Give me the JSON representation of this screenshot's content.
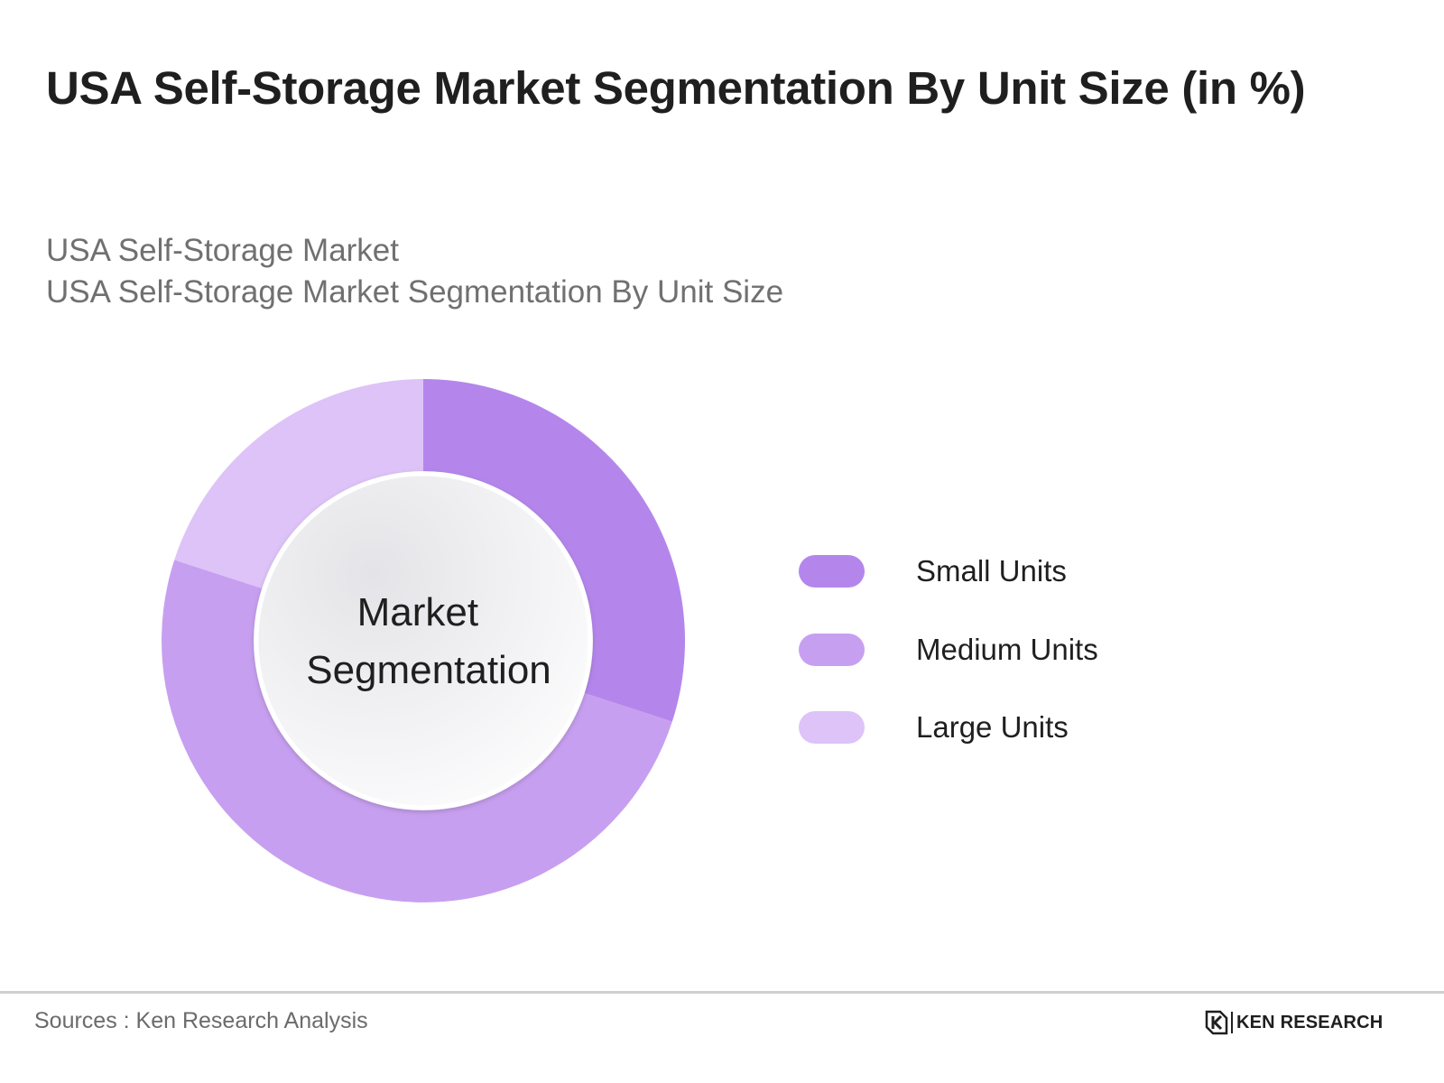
{
  "title": "USA Self-Storage Market Segmentation By Unit Size (in %)",
  "subtitle_line1": "USA Self-Storage Market",
  "subtitle_line2": "USA Self-Storage Market Segmentation By Unit Size",
  "center_label": [
    "Market",
    "Segmentation"
  ],
  "source_text": "Sources : Ken Research Analysis",
  "logo_text": "KEN RESEARCH",
  "chart_data": {
    "type": "pie",
    "style": "donut",
    "categories": [
      "Small Units",
      "Medium Units",
      "Large Units"
    ],
    "values": [
      30,
      50,
      20
    ],
    "unit": "%",
    "colors": [
      "#b486ec",
      "#c79ff0",
      "#ddc3f7"
    ],
    "legend_position": "right",
    "center_fill": "#f2f2f4"
  }
}
